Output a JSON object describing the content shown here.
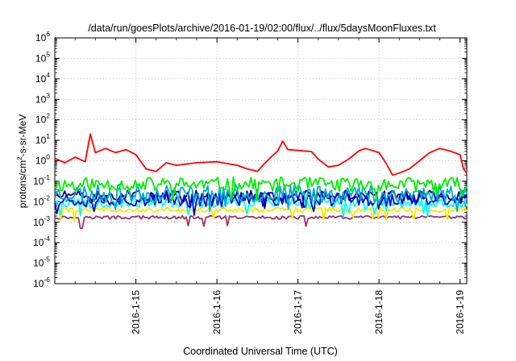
{
  "chart_data": {
    "type": "line",
    "title": "/data/run/goesPlots/archive/2016-01-19/02:00/flux/../flux/5daysMoonFluxes.txt",
    "xlabel": "Coordinated Universal Time (UTC)",
    "ylabel": {
      "base": "protons/cm",
      "sup": "2",
      "rest": "-s-sr-MeV"
    },
    "yscale": "log",
    "ylim_exp": [
      -6,
      6
    ],
    "y_ticks": [
      {
        "mant": "10",
        "exp": "-6",
        "v": -6
      },
      {
        "mant": "10",
        "exp": "-5",
        "v": -5
      },
      {
        "mant": "10",
        "exp": "-4",
        "v": -4
      },
      {
        "mant": "10",
        "exp": "-3",
        "v": -3
      },
      {
        "mant": "10",
        "exp": "-2",
        "v": -2
      },
      {
        "mant": "10",
        "exp": "-1",
        "v": -1
      },
      {
        "mant": "10",
        "exp": "0",
        "v": 0
      },
      {
        "mant": "10",
        "exp": "1",
        "v": 1
      },
      {
        "mant": "10",
        "exp": "2",
        "v": 2
      },
      {
        "mant": "10",
        "exp": "3",
        "v": 3
      },
      {
        "mant": "10",
        "exp": "4",
        "v": 4
      },
      {
        "mant": "10",
        "exp": "5",
        "v": 5
      },
      {
        "mant": "10",
        "exp": "6",
        "v": 6
      }
    ],
    "xlim": [
      "2016-01-14 00:00",
      "2016-01-19 02:00"
    ],
    "x_ticks": [
      "2016-1-15",
      "2016-1-16",
      "2016-1-17",
      "2016-1-18",
      "2016-1-19"
    ],
    "grid": true,
    "series": [
      {
        "color": "#ff0000",
        "points": [
          [
            "01-14 00:00",
            1.3
          ],
          [
            "01-14 03:00",
            0.8
          ],
          [
            "01-14 06:00",
            1.5
          ],
          [
            "01-14 09:00",
            0.9
          ],
          [
            "01-14 10:30",
            20
          ],
          [
            "01-14 12:00",
            2.5
          ],
          [
            "01-14 15:00",
            4.0
          ],
          [
            "01-14 18:00",
            2.5
          ],
          [
            "01-14 21:00",
            3.5
          ],
          [
            "01-15 00:00",
            2.0
          ],
          [
            "01-15 03:00",
            0.4
          ],
          [
            "01-15 06:00",
            0.3
          ],
          [
            "01-15 09:00",
            0.8
          ],
          [
            "01-15 12:00",
            0.6
          ],
          [
            "01-15 18:00",
            0.8
          ],
          [
            "01-16 00:00",
            0.9
          ],
          [
            "01-16 06:00",
            0.6
          ],
          [
            "01-16 09:00",
            0.4
          ],
          [
            "01-16 12:00",
            0.3
          ],
          [
            "01-16 14:00",
            0.7
          ],
          [
            "01-16 16:00",
            1.5
          ],
          [
            "01-16 18:00",
            3.0
          ],
          [
            "01-16 19:30",
            9.0
          ],
          [
            "01-16 21:00",
            3.5
          ],
          [
            "01-17 00:00",
            3.2
          ],
          [
            "01-17 04:00",
            2.8
          ],
          [
            "01-17 06:00",
            1.2
          ],
          [
            "01-17 09:00",
            0.5
          ],
          [
            "01-17 12:00",
            0.6
          ],
          [
            "01-17 15:00",
            1.2
          ],
          [
            "01-17 18:00",
            3.0
          ],
          [
            "01-17 20:00",
            4.0
          ],
          [
            "01-18 00:00",
            2.5
          ],
          [
            "01-18 02:00",
            0.8
          ],
          [
            "01-18 04:00",
            0.2
          ],
          [
            "01-18 06:00",
            0.25
          ],
          [
            "01-18 09:00",
            0.4
          ],
          [
            "01-18 12:00",
            1.0
          ],
          [
            "01-18 15:00",
            2.5
          ],
          [
            "01-18 18:00",
            4.0
          ],
          [
            "01-18 21:00",
            3.0
          ],
          [
            "01-19 00:00",
            2.0
          ],
          [
            "01-19 01:00",
            0.4
          ],
          [
            "01-19 02:00",
            0.25
          ]
        ]
      },
      {
        "color": "#00ee00",
        "level": 0.07,
        "spread": 0.35,
        "seed": 11
      },
      {
        "color": "#00aacc",
        "level": 0.025,
        "spread": 0.45,
        "seed": 23
      },
      {
        "color": "#0000dd",
        "level": 0.013,
        "spread": 0.35,
        "seed": 37
      },
      {
        "color": "#000080",
        "level": 0.02,
        "spread": 0.25,
        "seed": 51
      },
      {
        "color": "#00ffff",
        "level": 0.009,
        "spread": 0.25,
        "seed": 67
      },
      {
        "color": "#eeee00",
        "level": 0.004,
        "spread": 0.12,
        "seed": 79
      },
      {
        "color": "#993366",
        "level": 0.0017,
        "spread": 0.08,
        "seed": 97
      }
    ]
  }
}
